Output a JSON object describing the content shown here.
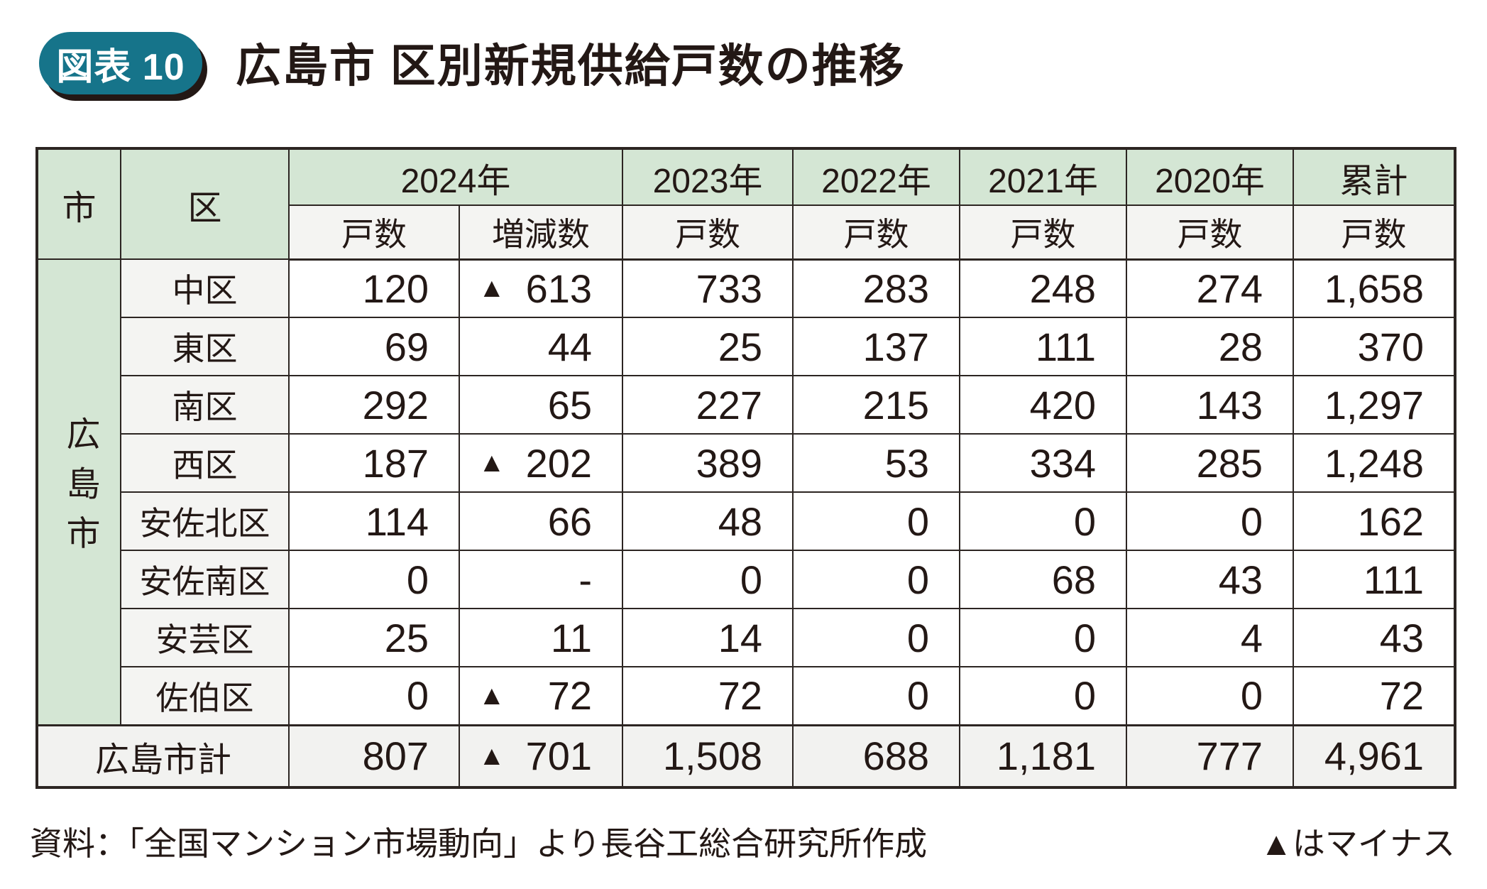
{
  "page": {
    "figure_badge": "図表 10",
    "title": "広島市 区別新規供給戸数の推移"
  },
  "table": {
    "city_header": "市",
    "ward_header": "区",
    "col_groups": [
      {
        "label": "2024年",
        "span": 2
      },
      {
        "label": "2023年",
        "span": 1
      },
      {
        "label": "2022年",
        "span": 1
      },
      {
        "label": "2021年",
        "span": 1
      },
      {
        "label": "2020年",
        "span": 1
      },
      {
        "label": "累計",
        "span": 1
      }
    ],
    "sub_headers": [
      "戸数",
      "増減数",
      "戸数",
      "戸数",
      "戸数",
      "戸数",
      "戸数"
    ],
    "city_label": "広島市",
    "rows": [
      {
        "ward": "中区",
        "values": [
          "120",
          {
            "neg": true,
            "v": "613"
          },
          "733",
          "283",
          "248",
          "274",
          "1,658"
        ]
      },
      {
        "ward": "東区",
        "values": [
          "69",
          "44",
          "25",
          "137",
          "111",
          "28",
          "370"
        ]
      },
      {
        "ward": "南区",
        "values": [
          "292",
          "65",
          "227",
          "215",
          "420",
          "143",
          "1,297"
        ]
      },
      {
        "ward": "西区",
        "values": [
          "187",
          {
            "neg": true,
            "v": "202"
          },
          "389",
          "53",
          "334",
          "285",
          "1,248"
        ]
      },
      {
        "ward": "安佐北区",
        "values": [
          "114",
          "66",
          "48",
          "0",
          "0",
          "0",
          "162"
        ]
      },
      {
        "ward": "安佐南区",
        "values": [
          "0",
          "-",
          "0",
          "0",
          "68",
          "43",
          "111"
        ]
      },
      {
        "ward": "安芸区",
        "values": [
          "25",
          "11",
          "14",
          "0",
          "0",
          "4",
          "43"
        ]
      },
      {
        "ward": "佐伯区",
        "values": [
          "0",
          {
            "neg": true,
            "v": "72"
          },
          "72",
          "0",
          "0",
          "0",
          "72"
        ]
      }
    ],
    "total_row": {
      "label": "広島市計",
      "values": [
        "807",
        {
          "neg": true,
          "v": "701"
        },
        "1,508",
        "688",
        "1,181",
        "777",
        "4,961"
      ]
    }
  },
  "footer": {
    "source": "資料：「全国マンション市場動向」より長谷工総合研究所作成",
    "negative_note": "▲はマイナス"
  },
  "colors": {
    "accent_teal": "#16748a",
    "badge_shadow": "#231815",
    "header_green": "#d4e6d4",
    "cell_gray": "#f4f4f2",
    "total_gray": "#f2f2f0",
    "border": "#2c2522",
    "text": "#231815"
  },
  "chart_data": {
    "type": "table",
    "title": "広島市 区別新規供給戸数の推移",
    "figure_label": "図表 10",
    "columns": [
      "市",
      "区",
      "2024年 戸数",
      "2024年 増減数",
      "2023年 戸数",
      "2022年 戸数",
      "2021年 戸数",
      "2020年 戸数",
      "累計 戸数"
    ],
    "city": "広島市",
    "rows": [
      {
        "ward": "中区",
        "y2024": 120,
        "change2024": -613,
        "y2023": 733,
        "y2022": 283,
        "y2021": 248,
        "y2020": 274,
        "cumulative": 1658
      },
      {
        "ward": "東区",
        "y2024": 69,
        "change2024": 44,
        "y2023": 25,
        "y2022": 137,
        "y2021": 111,
        "y2020": 28,
        "cumulative": 370
      },
      {
        "ward": "南区",
        "y2024": 292,
        "change2024": 65,
        "y2023": 227,
        "y2022": 215,
        "y2021": 420,
        "y2020": 143,
        "cumulative": 1297
      },
      {
        "ward": "西区",
        "y2024": 187,
        "change2024": -202,
        "y2023": 389,
        "y2022": 53,
        "y2021": 334,
        "y2020": 285,
        "cumulative": 1248
      },
      {
        "ward": "安佐北区",
        "y2024": 114,
        "change2024": 66,
        "y2023": 48,
        "y2022": 0,
        "y2021": 0,
        "y2020": 0,
        "cumulative": 162
      },
      {
        "ward": "安佐南区",
        "y2024": 0,
        "change2024": null,
        "y2023": 0,
        "y2022": 0,
        "y2021": 68,
        "y2020": 43,
        "cumulative": 111
      },
      {
        "ward": "安芸区",
        "y2024": 25,
        "change2024": 11,
        "y2023": 14,
        "y2022": 0,
        "y2021": 0,
        "y2020": 4,
        "cumulative": 43
      },
      {
        "ward": "佐伯区",
        "y2024": 0,
        "change2024": -72,
        "y2023": 72,
        "y2022": 0,
        "y2021": 0,
        "y2020": 0,
        "cumulative": 72
      }
    ],
    "total": {
      "label": "広島市計",
      "y2024": 807,
      "change2024": -701,
      "y2023": 1508,
      "y2022": 688,
      "y2021": 1181,
      "y2020": 777,
      "cumulative": 4961
    },
    "note": "▲はマイナス"
  }
}
